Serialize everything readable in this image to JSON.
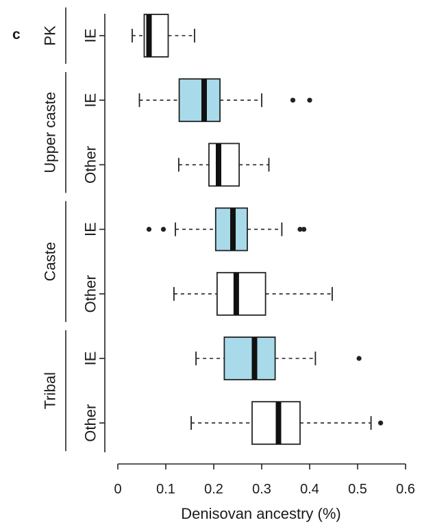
{
  "panel_label": "c",
  "chart_data": {
    "type": "box",
    "orientation": "horizontal",
    "xlabel": "Denisovan ancestry (%)",
    "xlim": [
      0,
      0.6
    ],
    "xticks": [
      0,
      0.1,
      0.2,
      0.3,
      0.4,
      0.5,
      0.6
    ],
    "xtick_labels": [
      "0",
      "0.1",
      "0.2",
      "0.3",
      "0.4",
      "0.5",
      "0.6"
    ],
    "groups": [
      {
        "label": "PK",
        "rows": [
          0
        ]
      },
      {
        "label": "Upper caste",
        "rows": [
          1,
          2
        ]
      },
      {
        "label": "Caste",
        "rows": [
          3,
          4
        ]
      },
      {
        "label": "Tribal",
        "rows": [
          5,
          6
        ]
      }
    ],
    "rows": [
      {
        "label": "IE",
        "group": "PK",
        "color": "#ffffff",
        "whisker_low": 0.03,
        "q1": 0.055,
        "median": 0.065,
        "q3": 0.105,
        "whisker_high": 0.16,
        "outliers": []
      },
      {
        "label": "IE",
        "group": "Upper caste",
        "color": "#a8daea",
        "whisker_low": 0.045,
        "q1": 0.128,
        "median": 0.18,
        "q3": 0.213,
        "whisker_high": 0.3,
        "outliers": [
          0.365,
          0.4
        ]
      },
      {
        "label": "Other",
        "group": "Upper caste",
        "color": "#ffffff",
        "whisker_low": 0.127,
        "q1": 0.19,
        "median": 0.21,
        "q3": 0.253,
        "whisker_high": 0.315,
        "outliers": []
      },
      {
        "label": "IE",
        "group": "Caste",
        "color": "#a8daea",
        "whisker_low": 0.12,
        "q1": 0.204,
        "median": 0.24,
        "q3": 0.27,
        "whisker_high": 0.342,
        "outliers": [
          0.065,
          0.095,
          0.38,
          0.388
        ]
      },
      {
        "label": "Other",
        "group": "Caste",
        "color": "#ffffff",
        "whisker_low": 0.117,
        "q1": 0.207,
        "median": 0.247,
        "q3": 0.308,
        "whisker_high": 0.447,
        "outliers": []
      },
      {
        "label": "IE",
        "group": "Tribal",
        "color": "#a8daea",
        "whisker_low": 0.163,
        "q1": 0.222,
        "median": 0.285,
        "q3": 0.328,
        "whisker_high": 0.412,
        "outliers": [
          0.503
        ]
      },
      {
        "label": "Other",
        "group": "Tribal",
        "color": "#ffffff",
        "whisker_low": 0.153,
        "q1": 0.28,
        "median": 0.335,
        "q3": 0.38,
        "whisker_high": 0.528,
        "outliers": [
          0.548
        ]
      }
    ]
  }
}
